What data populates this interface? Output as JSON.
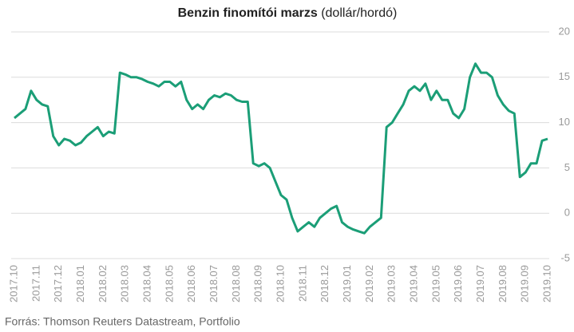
{
  "chart_data": {
    "type": "line",
    "title": "Benzin finomítói marzs",
    "subtitle": "(dollár/hordó)",
    "source": "Forrás: Thomson Reuters Datastream, Portfolio",
    "categories": [
      "2017.10",
      null,
      null,
      null,
      "2017.11",
      null,
      null,
      null,
      "2017.12",
      null,
      null,
      null,
      "2018.01",
      null,
      null,
      null,
      "2018.02",
      null,
      null,
      null,
      "2018.03",
      null,
      null,
      null,
      "2018.04",
      null,
      null,
      null,
      "2018.05",
      null,
      null,
      null,
      "2018.06",
      null,
      null,
      null,
      "2018.07",
      null,
      null,
      null,
      "2018.08",
      null,
      null,
      null,
      "2018.09",
      null,
      null,
      null,
      "2018.10",
      null,
      null,
      null,
      "2018.11",
      null,
      null,
      null,
      "2018.12",
      null,
      null,
      null,
      "2019.01",
      null,
      null,
      null,
      "2019.02",
      null,
      null,
      null,
      "2019.03",
      null,
      null,
      null,
      "2019.04",
      null,
      null,
      null,
      "2019.05",
      null,
      null,
      null,
      "2019.06",
      null,
      null,
      null,
      "2019.07",
      null,
      null,
      null,
      "2019.08",
      null,
      null,
      null,
      "2019.09",
      null,
      null,
      null,
      "2019.10"
    ],
    "series": [
      {
        "color": "#1b9e77",
        "values": [
          10.5,
          11,
          11.5,
          13.5,
          12.5,
          12,
          11.8,
          8.5,
          7.5,
          8.2,
          8,
          7.5,
          7.8,
          8.5,
          9,
          9.5,
          8.5,
          9,
          8.8,
          15.5,
          15.3,
          15,
          15,
          14.8,
          14.5,
          14.3,
          14,
          14.5,
          14.5,
          14,
          14.5,
          12.5,
          11.5,
          12,
          11.5,
          12.5,
          13,
          12.8,
          13.2,
          13,
          12.5,
          12.3,
          12.3,
          5.5,
          5.2,
          5.5,
          5,
          3.5,
          2,
          1.5,
          -0.5,
          -2,
          -1.5,
          -1,
          -1.5,
          -0.5,
          0,
          0.5,
          0.8,
          -1,
          -1.5,
          -1.8,
          -2,
          -2.2,
          -1.5,
          -1,
          -0.5,
          9.5,
          10,
          11,
          12,
          13.5,
          14,
          13.5,
          14.3,
          12.5,
          13.5,
          12.5,
          12.5,
          11,
          10.5,
          11.5,
          15,
          16.5,
          15.5,
          15.5,
          15,
          13,
          12,
          11.3,
          11,
          4,
          4.5,
          5.5,
          5.5,
          8,
          8.2
        ]
      }
    ],
    "ylim": [
      -5,
      20
    ],
    "yticks": [
      -5,
      0,
      5,
      10,
      15,
      20
    ],
    "grid": true
  }
}
